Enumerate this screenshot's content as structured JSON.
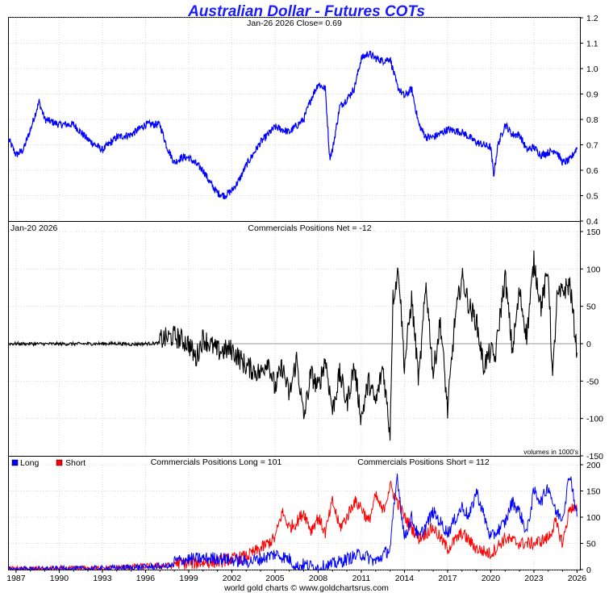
{
  "title": "Australian Dollar - Futures COTs",
  "footer": "world gold charts © www.goldchartsrus.com",
  "colors": {
    "title": "#1a1aff",
    "price": "#0000ff",
    "net": "#000000",
    "long": "#0000ff",
    "short": "#ff0000",
    "zero_line": "#999999"
  },
  "chart_data": [
    {
      "type": "line",
      "panel": "price",
      "header": "Jan-26  2026   Close= 0.69",
      "ylim": [
        0.4,
        1.2
      ],
      "yticks": [
        "1.2",
        "1.1",
        "1.0",
        "0.9",
        "0.8",
        "0.7",
        "0.6",
        "0.5",
        "0.4"
      ],
      "grid": true,
      "series": [
        {
          "values_x": [
            1986.5,
            1987.0,
            1987.5,
            1988.0,
            1988.6,
            1989.0,
            1990.0,
            1991.0,
            1992.0,
            1993.0,
            1994.0,
            1995.0,
            1996.0,
            1997.0,
            1997.5,
            1998.0,
            1998.5,
            1999.0,
            2000.0,
            2000.5,
            2001.0,
            2001.5,
            2002.0,
            2002.5,
            2003.0,
            2004.0,
            2004.5,
            2005.0,
            2006.0,
            2007.0,
            2007.5,
            2008.0,
            2008.5,
            2008.8,
            2009.0,
            2009.5,
            2010.0,
            2010.5,
            2011.0,
            2011.5,
            2012.0,
            2012.5,
            2013.0,
            2013.5,
            2014.0,
            2014.5,
            2015.0,
            2015.5,
            2016.0,
            2017.0,
            2018.0,
            2019.0,
            2020.0,
            2020.2,
            2020.5,
            2021.0,
            2021.5,
            2022.0,
            2022.5,
            2023.0,
            2023.5,
            2024.0,
            2024.5,
            2025.0,
            2025.5,
            2026.0
          ],
          "values_y": [
            0.72,
            0.66,
            0.68,
            0.76,
            0.87,
            0.8,
            0.78,
            0.78,
            0.72,
            0.68,
            0.73,
            0.74,
            0.78,
            0.78,
            0.69,
            0.63,
            0.65,
            0.65,
            0.6,
            0.55,
            0.51,
            0.5,
            0.52,
            0.56,
            0.62,
            0.71,
            0.74,
            0.77,
            0.75,
            0.8,
            0.88,
            0.94,
            0.92,
            0.65,
            0.68,
            0.85,
            0.88,
            0.92,
            1.04,
            1.06,
            1.04,
            1.03,
            1.04,
            0.93,
            0.89,
            0.92,
            0.78,
            0.73,
            0.73,
            0.76,
            0.75,
            0.71,
            0.69,
            0.58,
            0.7,
            0.78,
            0.74,
            0.74,
            0.68,
            0.69,
            0.66,
            0.67,
            0.68,
            0.63,
            0.64,
            0.69
          ]
        }
      ]
    },
    {
      "type": "line",
      "panel": "net",
      "header_left": "Jan-20  2026",
      "header_center": "Commercials Positions Net = -12",
      "note": "volumes in 1000's",
      "ylim": [
        -150,
        150
      ],
      "yticks": [
        "150",
        "100",
        "50",
        "0",
        "-50",
        "-100",
        "-150"
      ],
      "grid": true,
      "series": [
        {
          "values_x": [
            1986.5,
            1990.0,
            1993.0,
            1994.0,
            1995.0,
            1996.0,
            1997.0,
            1998.0,
            1999.0,
            1999.5,
            2000.0,
            2001.0,
            2002.0,
            2003.0,
            2004.0,
            2004.5,
            2005.0,
            2005.5,
            2006.0,
            2006.5,
            2007.0,
            2007.5,
            2008.0,
            2008.5,
            2009.0,
            2009.5,
            2010.0,
            2010.5,
            2011.0,
            2011.5,
            2012.0,
            2012.5,
            2013.0,
            2013.2,
            2013.6,
            2014.0,
            2014.5,
            2015.0,
            2015.5,
            2016.0,
            2016.5,
            2017.0,
            2017.5,
            2018.0,
            2018.5,
            2019.0,
            2019.5,
            2020.0,
            2020.3,
            2020.6,
            2021.0,
            2021.5,
            2022.0,
            2022.5,
            2023.0,
            2023.5,
            2024.0,
            2024.3,
            2024.6,
            2025.0,
            2025.5,
            2026.0
          ],
          "values_y": [
            0,
            -2,
            0,
            2,
            -5,
            0,
            5,
            10,
            0,
            -20,
            8,
            -10,
            -8,
            -30,
            -40,
            -20,
            -60,
            -30,
            -70,
            -20,
            -100,
            -40,
            -60,
            -20,
            -90,
            -40,
            -80,
            -30,
            -100,
            -50,
            -80,
            -30,
            -120,
            60,
            100,
            -30,
            60,
            -50,
            80,
            -40,
            30,
            -90,
            30,
            90,
            50,
            30,
            -30,
            -10,
            -20,
            30,
            90,
            -10,
            70,
            10,
            110,
            50,
            100,
            -50,
            60,
            70,
            80,
            -12
          ]
        }
      ]
    },
    {
      "type": "line",
      "panel": "positions",
      "legend": [
        "Long",
        "Short"
      ],
      "legend_position": "top-left",
      "header_long": "Commercials Positions Long = 101",
      "header_short": "Commercials Positions Short = 112",
      "ylim": [
        0,
        200
      ],
      "yticks": [
        "200",
        "150",
        "100",
        "50",
        "0"
      ],
      "x_tick_labels": [
        "1987",
        "1990",
        "1993",
        "1996",
        "1999",
        "2002",
        "2005",
        "2008",
        "2011",
        "2014",
        "2017",
        "2020",
        "2023",
        "2026"
      ],
      "grid": true,
      "series": [
        {
          "name": "Long",
          "values_x": [
            1986.5,
            1990.0,
            1993.0,
            1995.0,
            1997.0,
            1999.0,
            2001.0,
            2003.0,
            2004.0,
            2005.0,
            2006.0,
            2006.5,
            2007.0,
            2008.0,
            2009.0,
            2010.0,
            2011.0,
            2012.0,
            2013.0,
            2013.5,
            2014.0,
            2014.5,
            2015.0,
            2016.0,
            2017.0,
            2018.0,
            2018.5,
            2019.0,
            2020.0,
            2021.0,
            2021.5,
            2022.0,
            2022.5,
            2023.0,
            2023.5,
            2024.0,
            2024.5,
            2025.0,
            2025.5,
            2026.0
          ],
          "values_y": [
            0,
            2,
            3,
            8,
            12,
            20,
            22,
            15,
            20,
            30,
            20,
            5,
            10,
            3,
            10,
            20,
            30,
            15,
            40,
            180,
            60,
            100,
            60,
            110,
            70,
            120,
            100,
            150,
            60,
            90,
            130,
            110,
            70,
            150,
            130,
            160,
            110,
            100,
            185,
            101
          ]
        },
        {
          "name": "Short",
          "values_x": [
            1986.5,
            1990.0,
            1993.0,
            1995.0,
            1997.0,
            1999.0,
            2001.0,
            2003.0,
            2004.0,
            2005.0,
            2005.5,
            2006.0,
            2006.5,
            2007.0,
            2007.5,
            2008.0,
            2008.5,
            2009.0,
            2009.5,
            2010.0,
            2010.5,
            2011.0,
            2011.5,
            2012.0,
            2012.5,
            2013.0,
            2013.5,
            2014.0,
            2015.0,
            2016.0,
            2017.0,
            2018.0,
            2019.0,
            2020.0,
            2021.0,
            2022.0,
            2023.0,
            2024.0,
            2024.5,
            2025.0,
            2025.5,
            2026.0
          ],
          "values_y": [
            0,
            2,
            4,
            10,
            15,
            12,
            15,
            25,
            40,
            60,
            110,
            80,
            90,
            110,
            75,
            100,
            70,
            130,
            80,
            100,
            130,
            120,
            90,
            140,
            110,
            160,
            130,
            100,
            60,
            80,
            40,
            70,
            40,
            30,
            60,
            50,
            50,
            60,
            90,
            50,
            120,
            112
          ]
        }
      ]
    }
  ]
}
